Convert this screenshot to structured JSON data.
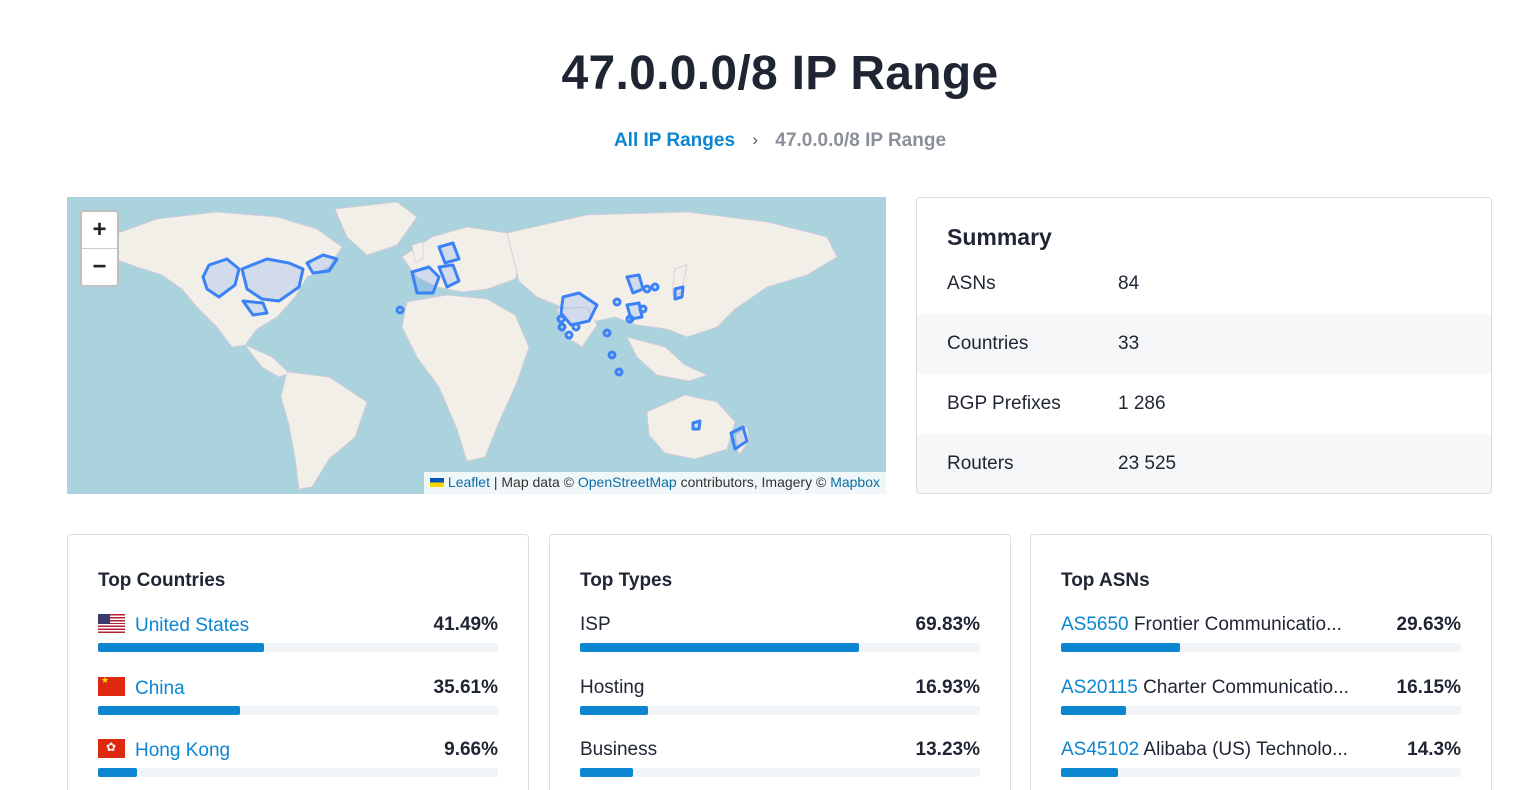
{
  "page": {
    "title": "47.0.0.0/8 IP Range"
  },
  "breadcrumb": {
    "parent": "All IP Ranges",
    "separator": "›",
    "current": "47.0.0.0/8 IP Range"
  },
  "map": {
    "zoom_in": "+",
    "zoom_out": "−",
    "attribution": {
      "leaflet": "Leaflet",
      "separator": "|",
      "map_data_prefix": "Map data ©",
      "osm": "OpenStreetMap",
      "contributors": "contributors, Imagery ©",
      "mapbox": "Mapbox"
    },
    "colors": {
      "water": "#abd3de",
      "land": "#f2efe9",
      "highlight": "#3b82f6"
    }
  },
  "summary": {
    "title": "Summary",
    "rows": [
      {
        "label": "ASNs",
        "value": "84"
      },
      {
        "label": "Countries",
        "value": "33"
      },
      {
        "label": "BGP Prefixes",
        "value": "1 286"
      },
      {
        "label": "Routers",
        "value": "23 525"
      }
    ]
  },
  "top_countries": {
    "title": "Top Countries",
    "items": [
      {
        "name": "United States",
        "flag": "us-flag-icon",
        "percent_label": "41.49%",
        "percent": 41.49
      },
      {
        "name": "China",
        "flag": "cn-flag-icon",
        "percent_label": "35.61%",
        "percent": 35.61
      },
      {
        "name": "Hong Kong",
        "flag": "hk-flag-icon",
        "percent_label": "9.66%",
        "percent": 9.66
      }
    ]
  },
  "top_types": {
    "title": "Top Types",
    "items": [
      {
        "name": "ISP",
        "percent_label": "69.83%",
        "percent": 69.83
      },
      {
        "name": "Hosting",
        "percent_label": "16.93%",
        "percent": 16.93
      },
      {
        "name": "Business",
        "percent_label": "13.23%",
        "percent": 13.23
      }
    ]
  },
  "top_asns": {
    "title": "Top ASNs",
    "items": [
      {
        "asn": "AS5650",
        "desc": "Frontier Communicatio...",
        "percent_label": "29.63%",
        "percent": 29.63
      },
      {
        "asn": "AS20115",
        "desc": "Charter Communicatio...",
        "percent_label": "16.15%",
        "percent": 16.15
      },
      {
        "asn": "AS45102",
        "desc": "Alibaba (US) Technolo...",
        "percent_label": "14.3%",
        "percent": 14.3
      }
    ]
  },
  "colors": {
    "accent": "#0c86d0",
    "text": "#1f2533",
    "muted": "#8a8f99"
  }
}
